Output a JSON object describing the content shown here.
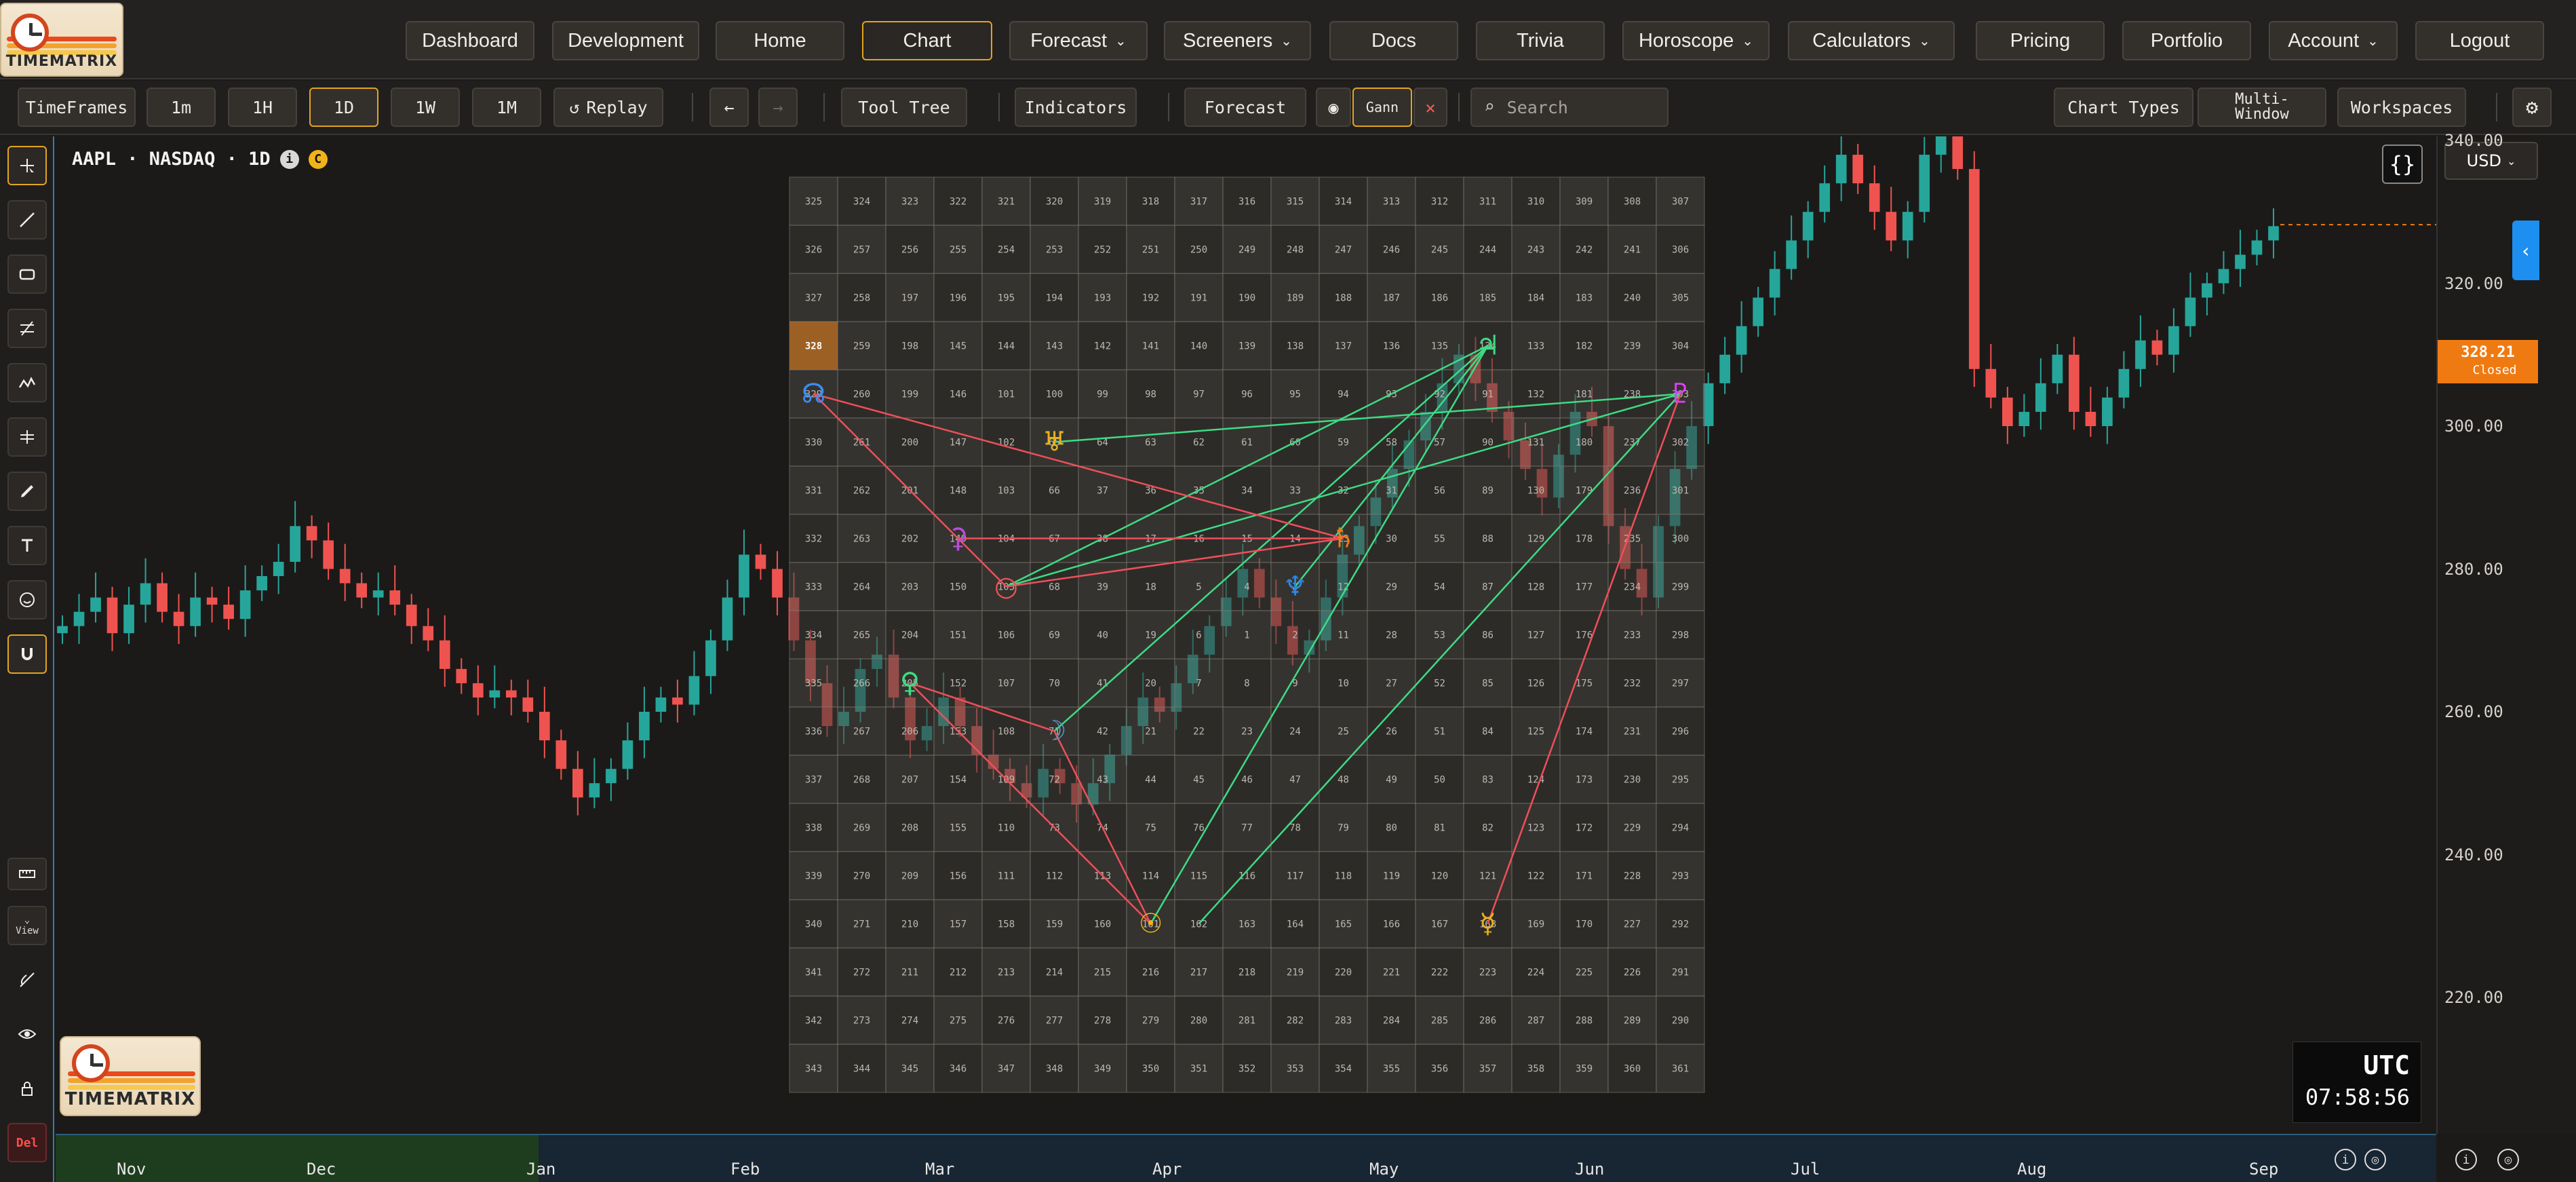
{
  "brand": {
    "name": "TIMEMATRIX",
    "stripe_colors": [
      "#e8491d",
      "#f3a22d",
      "#f6c84c"
    ]
  },
  "nav": {
    "items": [
      {
        "label": "Dashboard",
        "has_dropdown": false
      },
      {
        "label": "Development",
        "has_dropdown": false
      },
      {
        "label": "Home",
        "has_dropdown": false
      },
      {
        "label": "Chart",
        "has_dropdown": false,
        "active": true
      },
      {
        "label": "Forecast",
        "has_dropdown": true
      },
      {
        "label": "Screeners",
        "has_dropdown": true
      },
      {
        "label": "Docs",
        "has_dropdown": false
      },
      {
        "label": "Trivia",
        "has_dropdown": false
      },
      {
        "label": "Horoscope",
        "has_dropdown": true
      },
      {
        "label": "Calculators",
        "has_dropdown": true
      },
      {
        "label": "Pricing",
        "has_dropdown": false
      },
      {
        "label": "Portfolio",
        "has_dropdown": false
      },
      {
        "label": "Account",
        "has_dropdown": true
      },
      {
        "label": "Logout",
        "has_dropdown": false
      }
    ]
  },
  "toolbar": {
    "timeframes_label": "TimeFrames",
    "timeframes": [
      "1m",
      "1H",
      "1D",
      "1W",
      "1M"
    ],
    "active_timeframe": "1D",
    "replay_label": "Replay",
    "tool_tree_label": "Tool Tree",
    "indicators_label": "Indicators",
    "forecast_label": "Forecast",
    "gann_label": "Gann",
    "search_placeholder": "Search",
    "chart_types_label": "Chart Types",
    "multi_window_label": "Multi-\nWindow",
    "workspaces_label": "Workspaces"
  },
  "left_tools": [
    "crosshair-icon",
    "trend-line-icon",
    "rectangle-icon",
    "fib-icon",
    "pattern-icon",
    "gann-fan-icon",
    "pencil-icon",
    "text-icon",
    "emoji-icon",
    "magnet-icon"
  ],
  "left_tools_bottom": {
    "ruler": "ruler-icon",
    "view_label": "View",
    "hide": "hide-drawings-icon",
    "eye": "eye-icon",
    "lock": "lock-icon",
    "del_label": "Del"
  },
  "chart": {
    "symbol": "AAPL · NASDAQ · 1D",
    "badge_i": "i",
    "badge_c": "C",
    "currency": "USD",
    "price_ticks": [
      "340.00",
      "320.00",
      "300.00",
      "280.00",
      "260.00",
      "240.00",
      "220.00"
    ],
    "last_price": "328.21",
    "last_status": "Closed",
    "utc_label": "UTC",
    "utc_time": "07:58:56",
    "months": [
      "Nov",
      "Dec",
      "Jan",
      "Feb",
      "Mar",
      "Apr",
      "May",
      "Jun",
      "Jul",
      "Aug",
      "Sep"
    ],
    "colors": {
      "up": "#26a69a",
      "down": "#ef5350",
      "accent": "#e2a420",
      "price_tag": "#f07a12"
    }
  },
  "chart_data": {
    "type": "candlestick",
    "title": "AAPL · NASDAQ · 1D",
    "ylim": [
      220,
      345
    ],
    "x_labels": [
      "Nov",
      "Dec",
      "Jan",
      "Feb",
      "Mar",
      "Apr",
      "May",
      "Jun",
      "Jul",
      "Aug",
      "Sep"
    ],
    "close_path": [
      272,
      274,
      276,
      271,
      275,
      278,
      274,
      272,
      276,
      275,
      273,
      277,
      279,
      281,
      286,
      284,
      280,
      278,
      276,
      277,
      275,
      272,
      270,
      266,
      264,
      262,
      263,
      262,
      260,
      256,
      252,
      248,
      250,
      252,
      256,
      260,
      262,
      261,
      265,
      270,
      276,
      282,
      280,
      276,
      270,
      264,
      258,
      260,
      266,
      268,
      262,
      256,
      258,
      262,
      258,
      254,
      252,
      250,
      248,
      252,
      250,
      247,
      250,
      254,
      258,
      262,
      260,
      264,
      268,
      272,
      276,
      280,
      276,
      272,
      268,
      270,
      276,
      282,
      286,
      290,
      294,
      298,
      302,
      306,
      310,
      306,
      302,
      298,
      294,
      290,
      296,
      302,
      300,
      286,
      280,
      276,
      286,
      294,
      300,
      306,
      310,
      314,
      318,
      322,
      326,
      330,
      334,
      338,
      334,
      330,
      326,
      330,
      338,
      342,
      336,
      308,
      304,
      300,
      302,
      306,
      310,
      302,
      300,
      304,
      308,
      312,
      310,
      314,
      318,
      320,
      322,
      324,
      326,
      328
    ],
    "last": 328.21
  },
  "gann_square": {
    "rows": [
      [
        325,
        324,
        323,
        322,
        321,
        320,
        319,
        318,
        317,
        316,
        315,
        314,
        313,
        312,
        311,
        310,
        309,
        308,
        307
      ],
      [
        326,
        257,
        256,
        255,
        254,
        253,
        252,
        251,
        250,
        249,
        248,
        247,
        246,
        245,
        244,
        243,
        242,
        241,
        306
      ],
      [
        327,
        258,
        197,
        196,
        195,
        194,
        193,
        192,
        191,
        190,
        189,
        188,
        187,
        186,
        185,
        184,
        183,
        240,
        305
      ],
      [
        328,
        259,
        198,
        145,
        144,
        143,
        142,
        141,
        140,
        139,
        138,
        137,
        136,
        135,
        134,
        133,
        182,
        239,
        304
      ],
      [
        329,
        260,
        199,
        146,
        101,
        100,
        99,
        98,
        97,
        96,
        95,
        94,
        93,
        92,
        91,
        132,
        181,
        238,
        303
      ],
      [
        330,
        261,
        200,
        147,
        102,
        65,
        64,
        63,
        62,
        61,
        60,
        59,
        58,
        57,
        90,
        131,
        180,
        237,
        302
      ],
      [
        331,
        262,
        201,
        148,
        103,
        66,
        37,
        36,
        35,
        34,
        33,
        32,
        31,
        56,
        89,
        130,
        179,
        236,
        301
      ],
      [
        332,
        263,
        202,
        149,
        104,
        67,
        38,
        17,
        16,
        15,
        14,
        13,
        30,
        55,
        88,
        129,
        178,
        235,
        300
      ],
      [
        333,
        264,
        203,
        150,
        105,
        68,
        39,
        18,
        5,
        4,
        3,
        12,
        29,
        54,
        87,
        128,
        177,
        234,
        299
      ],
      [
        334,
        265,
        204,
        151,
        106,
        69,
        40,
        19,
        6,
        1,
        2,
        11,
        28,
        53,
        86,
        127,
        176,
        233,
        298
      ],
      [
        335,
        266,
        205,
        152,
        107,
        70,
        41,
        20,
        7,
        8,
        9,
        10,
        27,
        52,
        85,
        126,
        175,
        232,
        297
      ],
      [
        336,
        267,
        206,
        153,
        108,
        71,
        42,
        21,
        22,
        23,
        24,
        25,
        26,
        51,
        84,
        125,
        174,
        231,
        296
      ],
      [
        337,
        268,
        207,
        154,
        109,
        72,
        43,
        44,
        45,
        46,
        47,
        48,
        49,
        50,
        83,
        124,
        173,
        230,
        295
      ],
      [
        338,
        269,
        208,
        155,
        110,
        73,
        74,
        75,
        76,
        77,
        78,
        79,
        80,
        81,
        82,
        123,
        172,
        229,
        294
      ],
      [
        339,
        270,
        209,
        156,
        111,
        112,
        113,
        114,
        115,
        116,
        117,
        118,
        119,
        120,
        121,
        122,
        171,
        228,
        293
      ],
      [
        340,
        271,
        210,
        157,
        158,
        159,
        160,
        161,
        162,
        163,
        164,
        165,
        166,
        167,
        168,
        169,
        170,
        227,
        292
      ],
      [
        341,
        272,
        211,
        212,
        213,
        214,
        215,
        216,
        217,
        218,
        219,
        220,
        221,
        222,
        223,
        224,
        225,
        226,
        291
      ],
      [
        342,
        273,
        274,
        275,
        276,
        277,
        278,
        279,
        280,
        281,
        282,
        283,
        284,
        285,
        286,
        287,
        288,
        289,
        290
      ],
      [
        343,
        344,
        345,
        346,
        347,
        348,
        349,
        350,
        351,
        352,
        353,
        354,
        355,
        356,
        357,
        358,
        359,
        360,
        361
      ]
    ],
    "highlight": 328,
    "planets": [
      {
        "name": "jupiter",
        "glyph": "♃",
        "color": "#3ddc84",
        "cell": [
          14,
          3
        ]
      },
      {
        "name": "node",
        "glyph": "☊",
        "color": "#3a8ef6",
        "cell": [
          0,
          4
        ]
      },
      {
        "name": "pluto",
        "glyph": "♇",
        "color": "#e040fb",
        "cell": [
          18,
          4
        ]
      },
      {
        "name": "uranus",
        "glyph": "♅",
        "color": "#e8b21b",
        "cell": [
          5,
          5
        ]
      },
      {
        "name": "ceres",
        "glyph": "⚳",
        "color": "#b64ddb",
        "cell": [
          3,
          7
        ]
      },
      {
        "name": "saturn",
        "glyph": "♄",
        "color": "#f07a12",
        "cell": [
          11,
          7
        ]
      },
      {
        "name": "mars-point",
        "glyph": "○",
        "color": "#ef5350",
        "cell": [
          4,
          8
        ]
      },
      {
        "name": "neptune",
        "glyph": "♆",
        "color": "#2f86e0",
        "cell": [
          10,
          8
        ]
      },
      {
        "name": "venus",
        "glyph": "♀",
        "color": "#3ddc84",
        "cell": [
          2,
          10
        ]
      },
      {
        "name": "moon",
        "glyph": "☽",
        "color": "#5b9bd5",
        "cell": [
          5,
          11
        ]
      },
      {
        "name": "sun",
        "glyph": "☉",
        "color": "#f0b31a",
        "cell": [
          7,
          15
        ]
      },
      {
        "name": "mercury",
        "glyph": "☿",
        "color": "#e8b21b",
        "cell": [
          14,
          15
        ]
      }
    ],
    "green_lines": [
      [
        [
          14,
          3
        ],
        [
          4,
          8
        ]
      ],
      [
        [
          14,
          3
        ],
        [
          7,
          15
        ]
      ],
      [
        [
          14,
          3
        ],
        [
          5,
          11
        ]
      ],
      [
        [
          14,
          3
        ],
        [
          10,
          8
        ]
      ],
      [
        [
          18,
          4
        ],
        [
          5,
          5
        ]
      ],
      [
        [
          18,
          4
        ],
        [
          4,
          8
        ]
      ],
      [
        [
          18,
          4
        ],
        [
          8,
          15
        ]
      ]
    ],
    "red_lines": [
      [
        [
          0,
          4
        ],
        [
          4,
          8
        ]
      ],
      [
        [
          0,
          4
        ],
        [
          11,
          7
        ]
      ],
      [
        [
          4,
          8
        ],
        [
          11,
          7
        ]
      ],
      [
        [
          3,
          7
        ],
        [
          11,
          7
        ]
      ],
      [
        [
          2,
          10
        ],
        [
          7,
          15
        ]
      ],
      [
        [
          2,
          10
        ],
        [
          5,
          11
        ]
      ],
      [
        [
          18,
          4
        ],
        [
          14,
          15
        ]
      ],
      [
        [
          5,
          11
        ],
        [
          7,
          15
        ]
      ]
    ]
  }
}
